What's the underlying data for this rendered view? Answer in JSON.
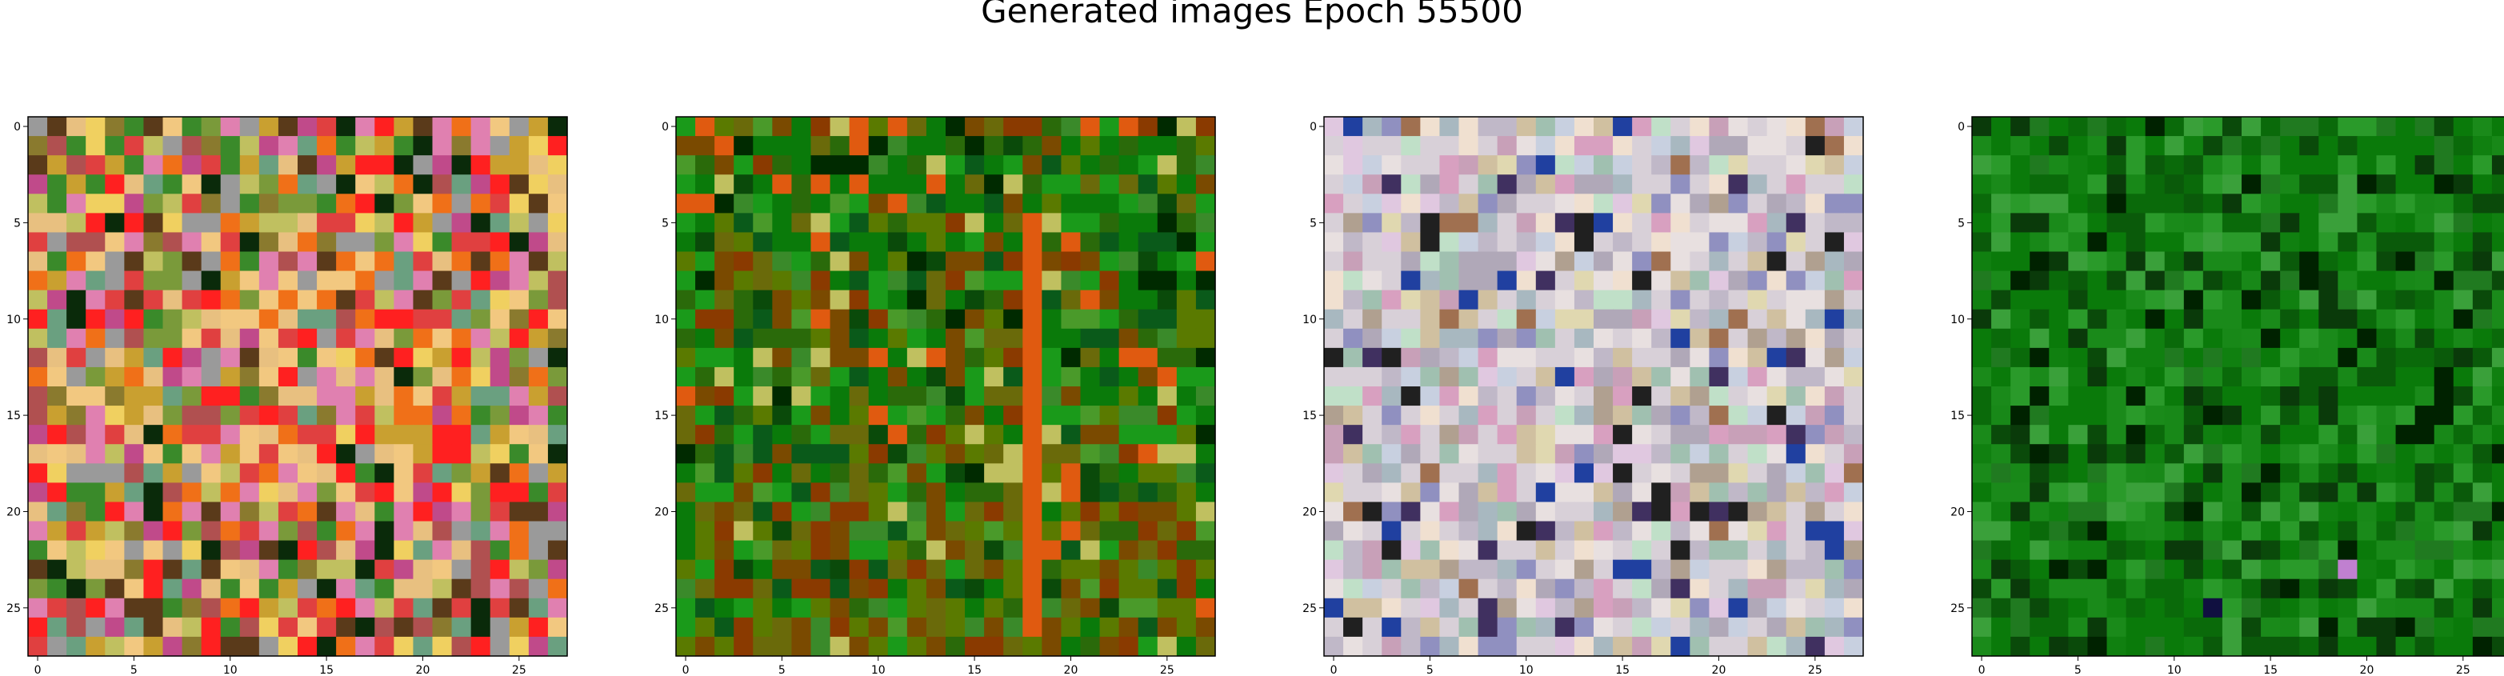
{
  "figure": {
    "suptitle": "Generated images Epoch 55500"
  },
  "chart_data": {
    "type": "heatmap",
    "title": "Generated images Epoch 55500",
    "panels": [
      {
        "name": "",
        "palette": [
          "#8a7a2e",
          "#c9a030",
          "#e04040",
          "#ff2020",
          "#f07018",
          "#e8c080",
          "#e080b0",
          "#7a9a3a",
          "#c04a8a",
          "#3a8a2a",
          "#f2c880",
          "#b05050",
          "#5a3a1a",
          "#0a2a0a",
          "#f0d060",
          "#6aa080",
          "#c0c060",
          "#9a9a9a"
        ],
        "xticks": [
          0,
          5,
          10,
          15,
          20,
          25
        ],
        "yticks": [
          0,
          5,
          10,
          15,
          20,
          25
        ],
        "xlim": [
          0,
          27
        ],
        "ylim": [
          27,
          0
        ]
      },
      {
        "name": "",
        "palette": [
          "#0a7a0a",
          "#1a9a1a",
          "#2a6a0a",
          "#5a7a00",
          "#0a5a1a",
          "#7a4a00",
          "#8a3a00",
          "#3a8a2a",
          "#0a4a0a",
          "#6a6a0a",
          "#e05a10",
          "#c0c060",
          "#002a00",
          "#4a9a2a"
        ],
        "xticks": [
          0,
          5,
          10,
          15,
          20,
          25
        ],
        "yticks": [
          0,
          5,
          10,
          15,
          20,
          25
        ],
        "xlim": [
          0,
          27
        ],
        "ylim": [
          27,
          0
        ]
      },
      {
        "name": "",
        "palette": [
          "#d8d0d8",
          "#c0b8c8",
          "#e8e0e0",
          "#b0a8b8",
          "#d0c0a0",
          "#c8d0e0",
          "#e0c8e0",
          "#a8b8c0",
          "#f0e0d0",
          "#c8a0b8",
          "#a0c0b0",
          "#e0d8b0",
          "#b0a090",
          "#d8a0c0",
          "#9090c0",
          "#c0e0c8",
          "#a07050",
          "#403060",
          "#2040a0",
          "#202020"
        ],
        "xticks": [
          0,
          5,
          10,
          15,
          20,
          25
        ],
        "yticks": [
          0,
          5,
          10,
          15,
          20,
          25
        ],
        "xlim": [
          0,
          27
        ],
        "ylim": [
          27,
          0
        ]
      },
      {
        "name": "",
        "palette": [
          "#0a7a0a",
          "#1a8a1a",
          "#0a6a0a",
          "#2a9a2a",
          "#0a5a0a",
          "#108010",
          "#207a20",
          "#0a4a0a",
          "#3aa03a",
          "#0a3a0a",
          "#188818",
          "#002200",
          "#c080d0",
          "#101040"
        ],
        "xticks": [
          0,
          5,
          10,
          15,
          20,
          25
        ],
        "yticks": [
          0,
          5,
          10,
          15,
          20,
          25
        ],
        "xlim": [
          0,
          27
        ],
        "ylim": [
          27,
          0
        ]
      }
    ],
    "grid": false,
    "cells_per_side": 28
  }
}
